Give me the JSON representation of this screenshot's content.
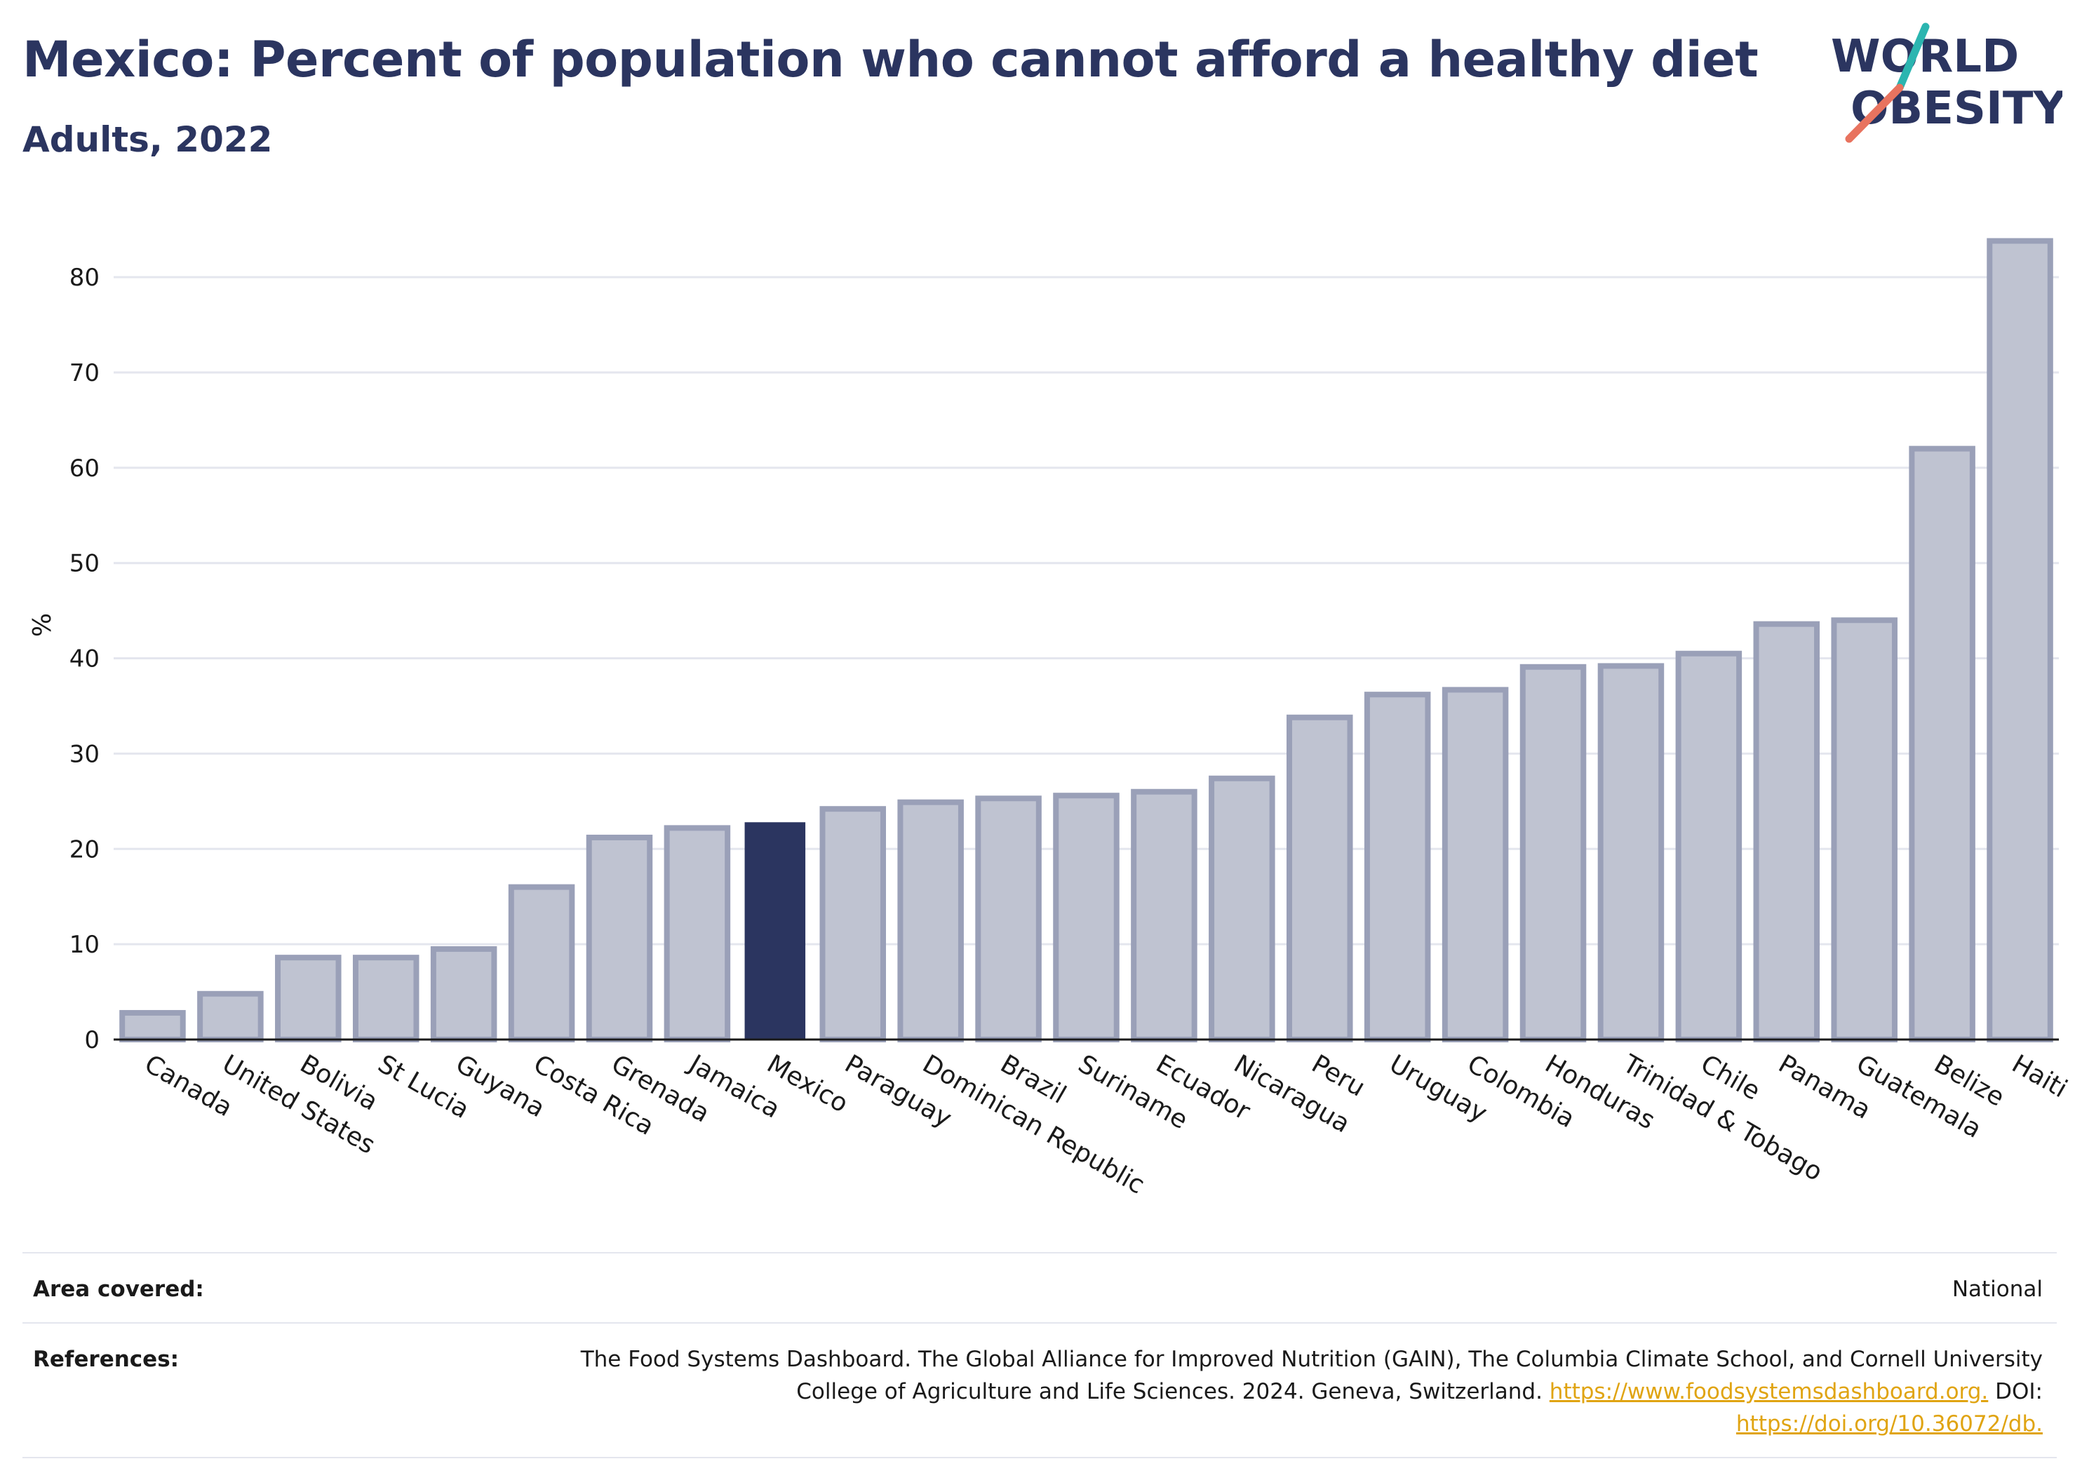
{
  "header": {
    "title": "Mexico: Percent of population who cannot afford a healthy diet",
    "subtitle": "Adults, 2022"
  },
  "logo": {
    "line1": "WORLD",
    "line2": "OBESITY",
    "colors": {
      "text": "#2b3560",
      "slash_top": "#2bb5b0",
      "slash_bottom": "#e8735f"
    }
  },
  "colors": {
    "bar_fill": "#bfc3d1",
    "bar_stroke": "#9aa0b8",
    "highlight": "#2b3560",
    "grid": "#e4e6ee",
    "axis": "#1a1a1a"
  },
  "chart_data": {
    "type": "bar",
    "ylabel": "%",
    "ylim": [
      0,
      87
    ],
    "yticks": [
      0,
      10,
      20,
      30,
      40,
      50,
      60,
      70,
      80
    ],
    "grid": true,
    "highlight": "Mexico",
    "categories": [
      "Canada",
      "United States",
      "Bolivia",
      "St Lucia",
      "Guyana",
      "Costa Rica",
      "Grenada",
      "Jamaica",
      "Mexico",
      "Paraguay",
      "Dominican Republic",
      "Brazil",
      "Suriname",
      "Ecuador",
      "Nicaragua",
      "Peru",
      "Uruguay",
      "Colombia",
      "Honduras",
      "Trinidad & Tobago",
      "Chile",
      "Panama",
      "Guatemala",
      "Belize",
      "Haiti"
    ],
    "values": [
      2.8,
      4.8,
      8.6,
      8.6,
      9.5,
      16.0,
      21.2,
      22.2,
      22.8,
      24.2,
      24.9,
      25.3,
      25.6,
      26.0,
      27.4,
      33.8,
      36.2,
      36.7,
      39.1,
      39.2,
      40.5,
      43.6,
      44.0,
      62.0,
      83.8
    ]
  },
  "meta": {
    "area_label": "Area covered:",
    "area_value": "National",
    "references_label": "References:",
    "references_line1": "The Food Systems Dashboard. The Global Alliance for Improved Nutrition (GAIN), The Columbia Climate School, and Cornell University",
    "references_line2_text": "College of Agriculture and Life Sciences. 2024. Geneva, Switzerland. ",
    "references_link1": "https://www.foodsystemsdashboard.org.",
    "references_doi_label": " DOI:",
    "references_link2": "https://doi.org/10.36072/db."
  }
}
